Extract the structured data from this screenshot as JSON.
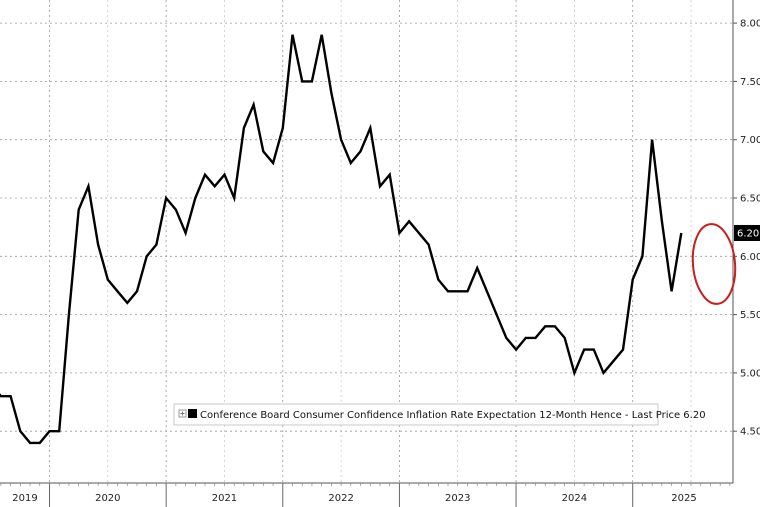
{
  "chart_data": {
    "type": "line",
    "title": "",
    "xlabel": "",
    "ylabel": "",
    "ylim": [
      4.0,
      8.1
    ],
    "yticks": [
      "8.00",
      "7.50",
      "7.00",
      "6.50",
      "6.00",
      "5.50",
      "5.00",
      "4.50"
    ],
    "year_labels": [
      "2019",
      "2020",
      "2021",
      "2022",
      "2023",
      "2024",
      "2025"
    ],
    "grid": true,
    "legend_position": "bottom-center",
    "series": [
      {
        "name": "Conference Board Consumer Confidence Inflation Rate Expectation 12-Month Hence - Last Price 6.20",
        "color": "#000000",
        "x": [
          "2019-06",
          "2019-07",
          "2019-08",
          "2019-09",
          "2019-10",
          "2019-11",
          "2019-12",
          "2020-01",
          "2020-02",
          "2020-03",
          "2020-04",
          "2020-05",
          "2020-06",
          "2020-07",
          "2020-08",
          "2020-09",
          "2020-10",
          "2020-11",
          "2020-12",
          "2021-01",
          "2021-02",
          "2021-03",
          "2021-04",
          "2021-05",
          "2021-06",
          "2021-07",
          "2021-08",
          "2021-09",
          "2021-10",
          "2021-11",
          "2021-12",
          "2022-01",
          "2022-02",
          "2022-03",
          "2022-04",
          "2022-05",
          "2022-06",
          "2022-07",
          "2022-08",
          "2022-09",
          "2022-10",
          "2022-11",
          "2022-12",
          "2023-01",
          "2023-02",
          "2023-03",
          "2023-04",
          "2023-05",
          "2023-06",
          "2023-07",
          "2023-08",
          "2023-09",
          "2023-10",
          "2023-11",
          "2023-12",
          "2024-01",
          "2024-02",
          "2024-03",
          "2024-04",
          "2024-05",
          "2024-06",
          "2024-07",
          "2024-08",
          "2024-09",
          "2024-10",
          "2024-11",
          "2024-12",
          "2025-01",
          "2025-02",
          "2025-03",
          "2025-04",
          "2025-05",
          "2025-06"
        ],
        "values": [
          4.6,
          4.9,
          4.8,
          4.8,
          4.5,
          4.4,
          4.4,
          4.5,
          4.5,
          5.5,
          6.4,
          6.6,
          6.1,
          5.8,
          5.7,
          5.6,
          5.7,
          6.0,
          6.1,
          6.5,
          6.4,
          6.2,
          6.5,
          6.7,
          6.6,
          6.7,
          6.5,
          7.1,
          7.3,
          6.9,
          6.8,
          7.1,
          7.9,
          7.5,
          7.5,
          7.9,
          7.4,
          7.0,
          6.8,
          6.9,
          7.1,
          6.6,
          6.7,
          6.2,
          6.3,
          6.2,
          6.1,
          5.8,
          5.7,
          5.7,
          5.7,
          5.9,
          5.7,
          5.5,
          5.3,
          5.2,
          5.3,
          5.3,
          5.4,
          5.4,
          5.3,
          5.0,
          5.2,
          5.2,
          5.0,
          5.1,
          5.2,
          5.8,
          6.0,
          7.0,
          6.3,
          5.7,
          6.2
        ]
      }
    ],
    "last_price_label": "6.20",
    "highlight_color": "#c81e1e"
  },
  "legend": {
    "label": "Conference Board Consumer Confidence Inflation Rate Expectation 12-Month Hence - Last Price 6.20"
  }
}
